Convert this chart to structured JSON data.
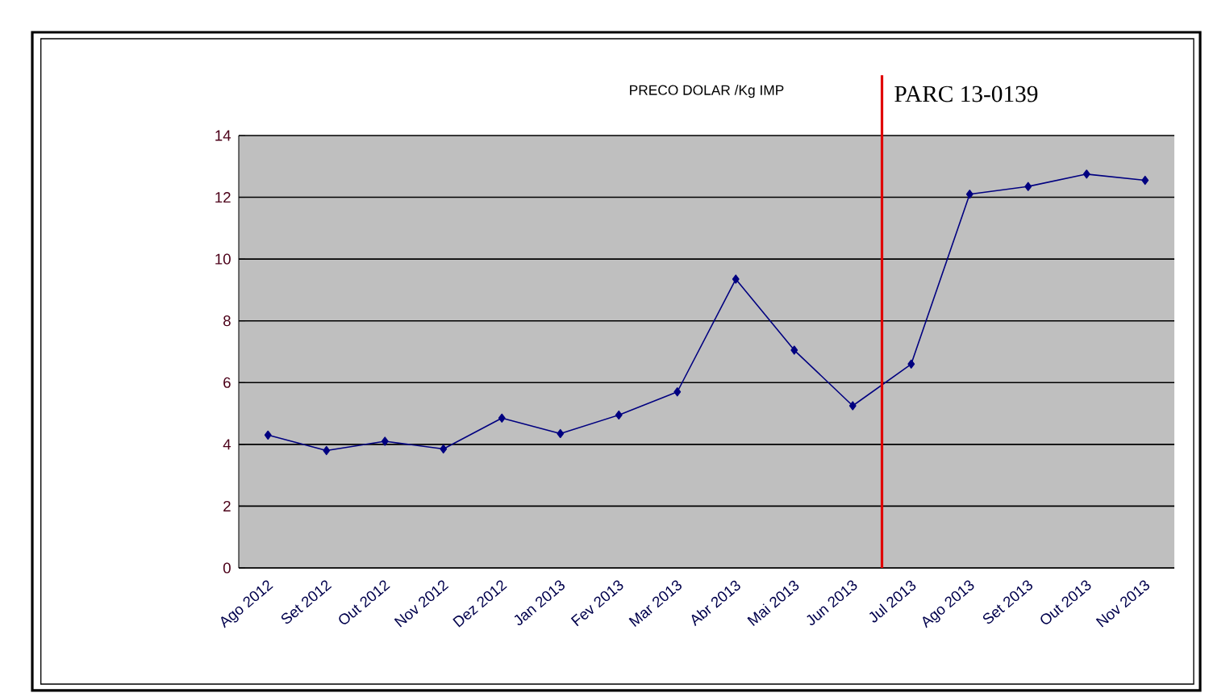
{
  "chart_data": {
    "type": "line",
    "title": "PRECO DOLAR /Kg IMP",
    "categories": [
      "Ago 2012",
      "Set 2012",
      "Out 2012",
      "Nov 2012",
      "Dez 2012",
      "Jan 2013",
      "Fev 2013",
      "Mar 2013",
      "Abr 2013",
      "Mai 2013",
      "Jun 2013",
      "Jul 2013",
      "Ago 2013",
      "Set 2013",
      "Out 2013",
      "Nov 2013"
    ],
    "values": [
      4.3,
      3.8,
      4.1,
      3.85,
      4.85,
      4.35,
      4.95,
      5.7,
      9.35,
      7.05,
      5.25,
      6.6,
      12.1,
      12.35,
      12.75,
      12.55
    ],
    "color": "#000080",
    "marker": "diamond",
    "line_style": "solid",
    "ylim": [
      0,
      14
    ],
    "yticks": [
      0,
      2,
      4,
      6,
      8,
      10,
      12,
      14
    ],
    "grid": "y",
    "ref_lines": [
      {
        "axis": "x",
        "value": "Jul 2013",
        "label": "PARC 13-0139",
        "color": "#e00000",
        "line_style": "solid"
      }
    ]
  }
}
